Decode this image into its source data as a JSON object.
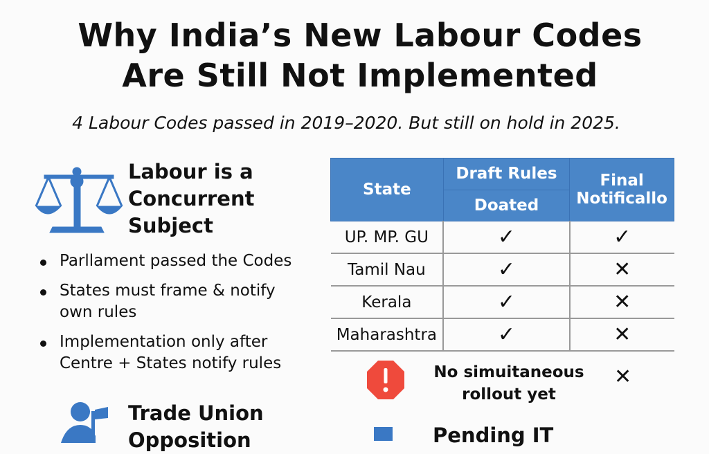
{
  "title": {
    "line1": "Why India’s New Labour Codes",
    "line2": "Are Still Not Implemented"
  },
  "subtitle": "4 Labour Codes passed in 2019–2020. But still on hold in 2025.",
  "concurrent": {
    "heading_lines": [
      "Labour is a",
      "Concurrent",
      "Subject"
    ],
    "bullets": [
      "Parllament passed the Codes",
      "States must frame & notify own rules",
      "Implementation only after Centre + States notify rules"
    ]
  },
  "trade_union": {
    "heading_lines": [
      "Trade Union",
      "Opposition"
    ]
  },
  "pending": {
    "heading": "Pending IT"
  },
  "table": {
    "headers": {
      "state": "State",
      "draft_line1": "Draft Rules",
      "draft_line2": "Doated",
      "final": "Final Notificallo"
    },
    "rows": [
      {
        "state": "UP. MP. GU",
        "draft": "✓",
        "final": "✓"
      },
      {
        "state": "Tamil Nau",
        "draft": "✓",
        "final": "✕"
      },
      {
        "state": "Kerala",
        "draft": "✓",
        "final": "✕"
      },
      {
        "state": "Maharashtra",
        "draft": "✓",
        "final": "✕"
      }
    ],
    "alert": {
      "text": "No simuitaneous rollout yet",
      "final": "✕"
    }
  },
  "colors": {
    "accent": "#4a86c8",
    "alert": "#ef4a3c"
  }
}
